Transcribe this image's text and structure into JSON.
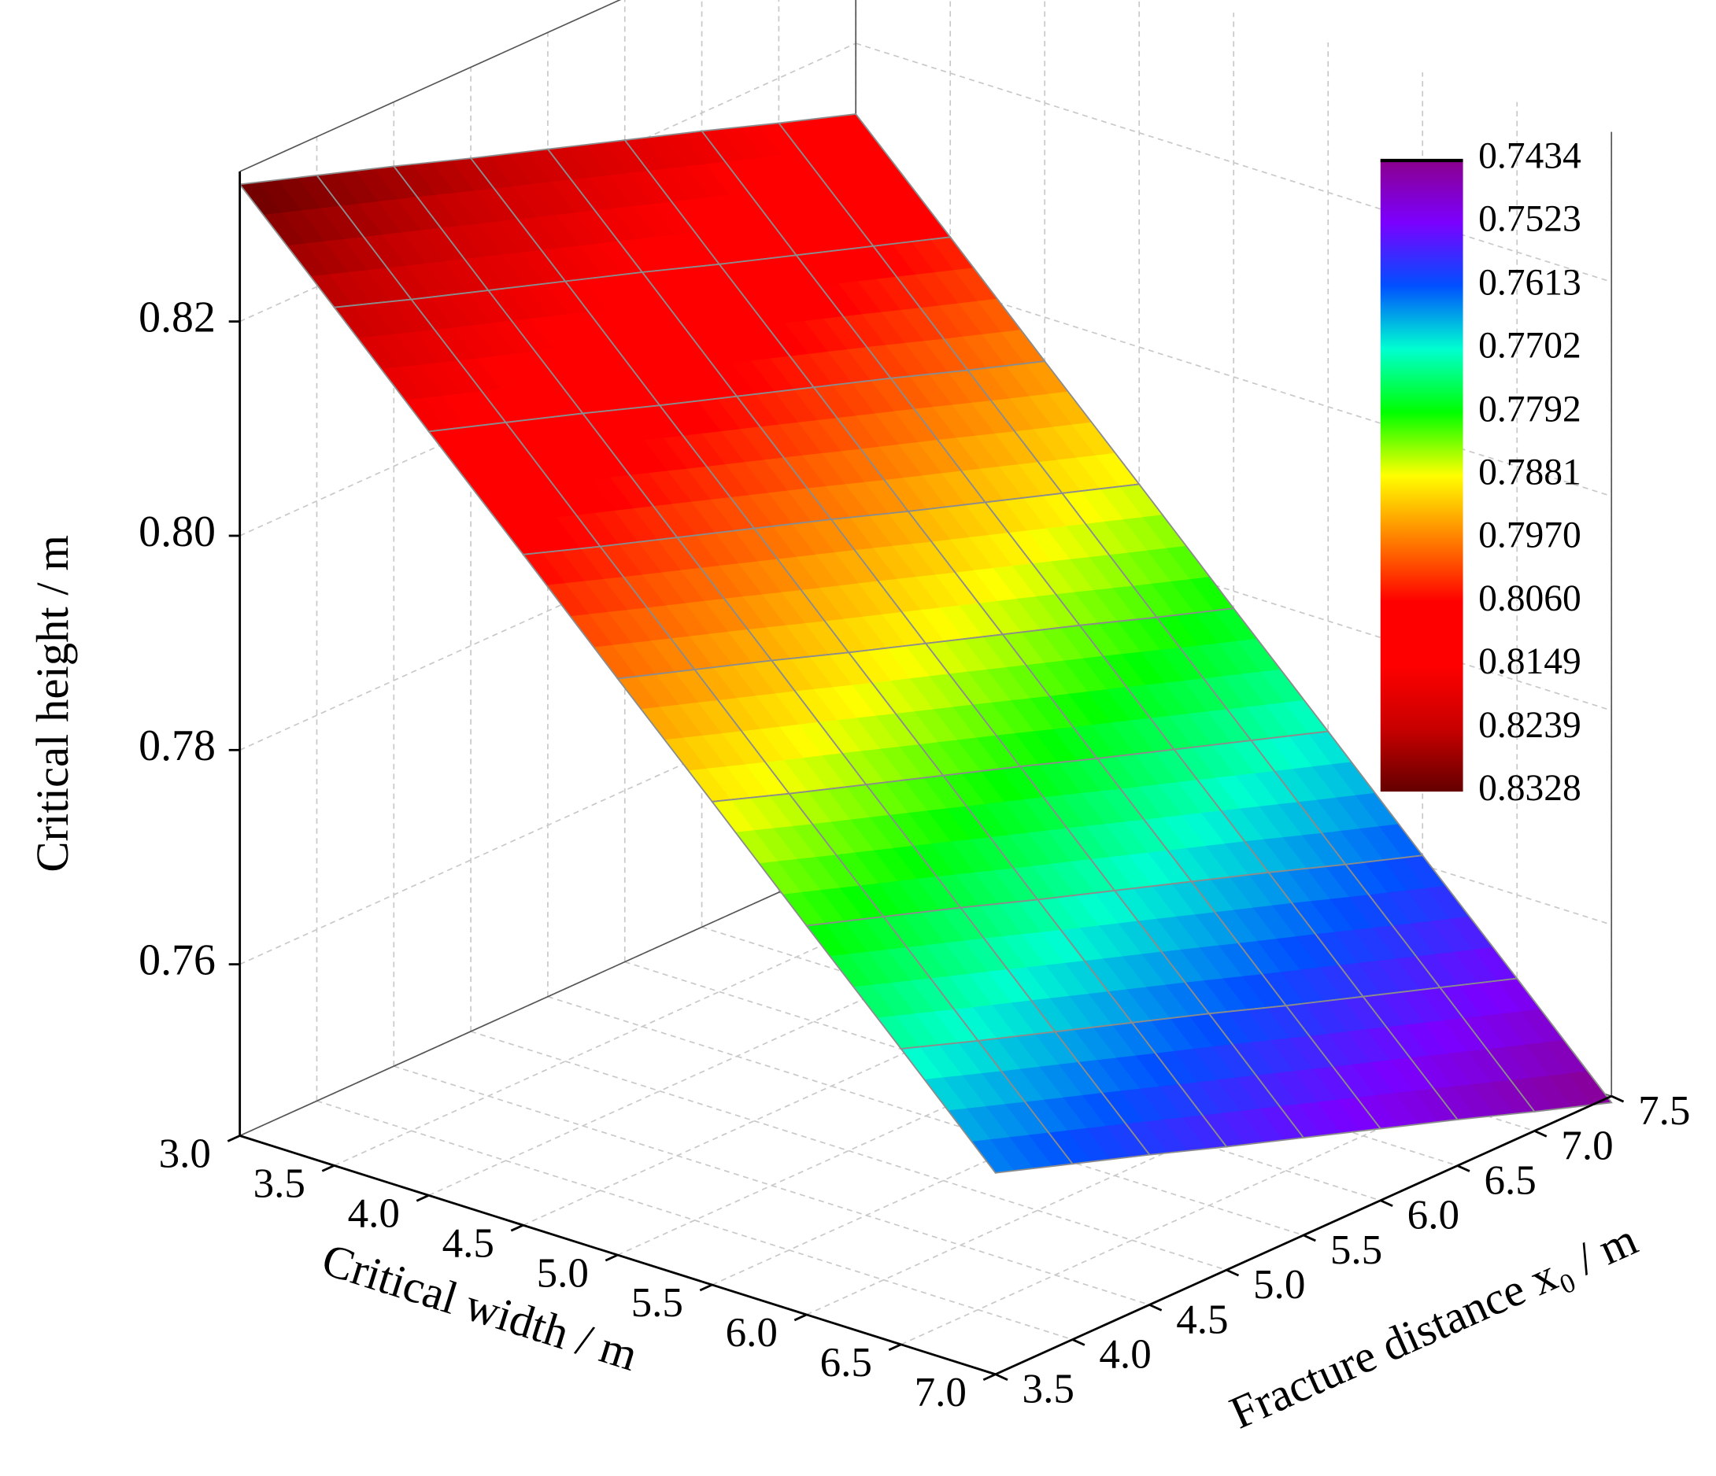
{
  "chart_data": {
    "type": "surface",
    "x_label": "Critical width / m",
    "y_label": "Fracture distance x₀ / m",
    "z_label": "Critical height / m",
    "x": [
      3,
      3.5,
      4,
      4.5,
      5,
      5.5,
      6,
      6.5,
      7
    ],
    "y": [
      3.5,
      4,
      4.5,
      5,
      5.5,
      6,
      6.5,
      7,
      7.5
    ],
    "z": [
      [
        0.8328,
        0.8304,
        0.828,
        0.8255,
        0.8231,
        0.8207,
        0.8183,
        0.8158,
        0.8134
      ],
      [
        0.8241,
        0.8216,
        0.8192,
        0.8168,
        0.8144,
        0.8119,
        0.8095,
        0.8071,
        0.8047
      ],
      [
        0.8153,
        0.8129,
        0.8105,
        0.808,
        0.8056,
        0.8032,
        0.8008,
        0.7983,
        0.7959
      ],
      [
        0.8066,
        0.8041,
        0.8017,
        0.7993,
        0.7969,
        0.7944,
        0.792,
        0.7896,
        0.7872
      ],
      [
        0.7978,
        0.7954,
        0.793,
        0.7905,
        0.7881,
        0.7857,
        0.7833,
        0.7808,
        0.7784
      ],
      [
        0.7891,
        0.7866,
        0.7842,
        0.7818,
        0.7794,
        0.7769,
        0.7745,
        0.7721,
        0.7697
      ],
      [
        0.7803,
        0.7779,
        0.7755,
        0.773,
        0.7706,
        0.7682,
        0.7658,
        0.7633,
        0.7609
      ],
      [
        0.7716,
        0.7691,
        0.7667,
        0.7643,
        0.7619,
        0.7594,
        0.757,
        0.7546,
        0.7522
      ],
      [
        0.7628,
        0.7604,
        0.758,
        0.7555,
        0.7531,
        0.7507,
        0.7483,
        0.7458,
        0.7434
      ]
    ],
    "xlim": [
      3,
      7
    ],
    "ylim": [
      3.5,
      7.5
    ],
    "zlim": [
      0.744,
      0.834
    ],
    "xticks": [
      {
        "value": 3,
        "label": "3.0"
      },
      3.5,
      {
        "value": 4,
        "label": "4.0"
      },
      4.5,
      {
        "value": 5,
        "label": "5.0"
      },
      5.5,
      {
        "value": 6,
        "label": "6.0"
      },
      6.5,
      {
        "value": 7,
        "label": "7.0"
      }
    ],
    "yticks": [
      3.5,
      {
        "value": 4,
        "label": "4.0"
      },
      4.5,
      {
        "value": 5,
        "label": "5.0"
      },
      5.5,
      {
        "value": 6,
        "label": "6.0"
      },
      6.5,
      {
        "value": 7,
        "label": "7.0"
      },
      7.5
    ],
    "zticks": [
      0.76,
      0.78,
      {
        "value": 0.8,
        "label": "0.80"
      },
      0.82
    ],
    "grid": true,
    "colorbar": {
      "ticks": [
        0.7434,
        0.7523,
        0.7613,
        0.7702,
        0.7792,
        0.7881,
        {
          "value": 0.797,
          "label": "0.7970"
        },
        {
          "value": 0.806,
          "label": "0.8060"
        },
        0.8149,
        0.8239,
        0.8328
      ],
      "colors": [
        "#8b008b",
        "#7b00ff",
        "#0050ff",
        "#00ffd0",
        "#00ff00",
        "#ffff00",
        "#ff8000",
        "#ff0000",
        "#ff0000",
        "#c80000",
        "#640000"
      ]
    }
  }
}
